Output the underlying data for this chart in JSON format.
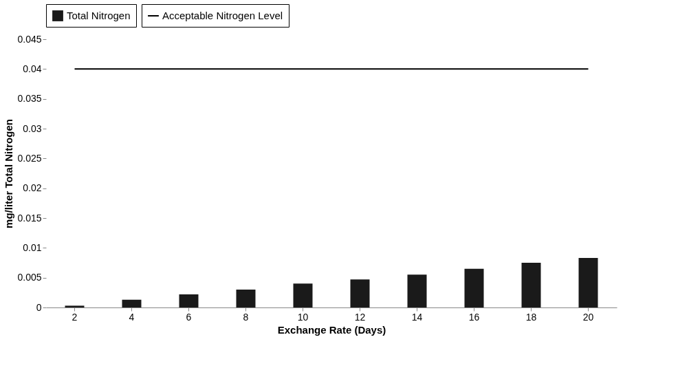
{
  "chart_data": {
    "type": "bar",
    "xlabel": "Exchange Rate (Days)",
    "ylabel": "mg/liter Total Nitrogen",
    "categories": [
      "2",
      "4",
      "6",
      "8",
      "10",
      "12",
      "14",
      "16",
      "18",
      "20"
    ],
    "series": [
      {
        "name": "Total Nitrogen",
        "color": "#1a1a1a",
        "values": [
          0.0003,
          0.0013,
          0.0022,
          0.003,
          0.004,
          0.0047,
          0.0055,
          0.0065,
          0.0075,
          0.0083
        ]
      },
      {
        "name": "Acceptable Nitrogen Level",
        "type": "line",
        "color": "#000000",
        "values": [
          0.04,
          0.04,
          0.04,
          0.04,
          0.04,
          0.04,
          0.04,
          0.04,
          0.04,
          0.04
        ]
      }
    ],
    "ylim": [
      0,
      0.045
    ],
    "yticks": [
      0,
      0.005,
      0.01,
      0.015,
      0.02,
      0.025,
      0.03,
      0.035,
      0.04,
      0.045
    ],
    "grid": false,
    "legend": "top",
    "marker": "none",
    "line_style": "solid"
  }
}
